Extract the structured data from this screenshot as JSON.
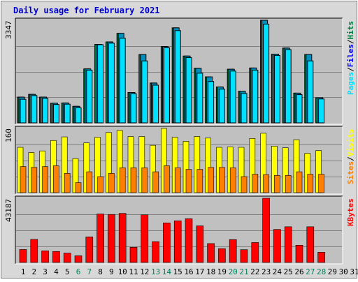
{
  "title": "Daily usage for February 2021",
  "colors": {
    "hits": "#008040",
    "files": "#00c0ff",
    "pages": "#00e0ff",
    "visits": "#ffff00",
    "sites": "#ff8000",
    "kbytes": "#ff0000",
    "weekend_label": "#00805c",
    "weekday_label": "#000000",
    "plot_bg": "#c0c0c0",
    "frame_bg": "#d8d8d8"
  },
  "chart_data": [
    {
      "type": "bar",
      "panel": "pages_files_hits",
      "ymax_label": "3347",
      "ylim": [
        0,
        3347
      ],
      "legend": [
        {
          "text": "Pages",
          "color": "#00e0ff"
        },
        {
          "text": "/",
          "color": "#000000"
        },
        {
          "text": "Files",
          "color": "#0000ff"
        },
        {
          "text": "/",
          "color": "#000000"
        },
        {
          "text": "Hits",
          "color": "#008040"
        }
      ],
      "categories": [
        "1",
        "2",
        "3",
        "4",
        "5",
        "6",
        "7",
        "8",
        "9",
        "10",
        "11",
        "12",
        "13",
        "14",
        "15",
        "16",
        "17",
        "18",
        "19",
        "20",
        "21",
        "22",
        "23",
        "24",
        "25",
        "26",
        "27",
        "28",
        "29",
        "30",
        "31"
      ],
      "series": [
        {
          "name": "Hits",
          "values": [
            840,
            930,
            840,
            640,
            650,
            540,
            1760,
            2560,
            2640,
            2920,
            990,
            2230,
            1300,
            2490,
            3100,
            2180,
            1780,
            1500,
            1170,
            1750,
            1030,
            1790,
            3347,
            2240,
            2440,
            970,
            2230,
            820,
            null,
            null,
            null
          ]
        },
        {
          "name": "Files",
          "values": [
            840,
            930,
            840,
            640,
            650,
            540,
            1760,
            2560,
            2640,
            2920,
            990,
            2230,
            1300,
            2490,
            3100,
            2180,
            1780,
            1500,
            1170,
            1750,
            1030,
            1790,
            3347,
            2240,
            2440,
            970,
            2230,
            820,
            null,
            null,
            null
          ]
        },
        {
          "name": "Pages",
          "values": [
            770,
            890,
            800,
            600,
            610,
            490,
            1720,
            2550,
            2600,
            2760,
            950,
            2020,
            1230,
            2450,
            3010,
            2130,
            1620,
            1350,
            1100,
            1690,
            960,
            1720,
            3220,
            2200,
            2390,
            920,
            2020,
            780,
            null,
            null,
            null
          ]
        }
      ]
    },
    {
      "type": "bar",
      "panel": "visits_sites",
      "ymax_label": "160",
      "ylim": [
        0,
        160
      ],
      "legend": [
        {
          "text": "Sites",
          "color": "#ff8000"
        },
        {
          "text": "/",
          "color": "#000000"
        },
        {
          "text": "Visits",
          "color": "#ffff00"
        }
      ],
      "categories": [
        "1",
        "2",
        "3",
        "4",
        "5",
        "6",
        "7",
        "8",
        "9",
        "10",
        "11",
        "12",
        "13",
        "14",
        "15",
        "16",
        "17",
        "18",
        "19",
        "20",
        "21",
        "22",
        "23",
        "24",
        "25",
        "26",
        "27",
        "28",
        "29",
        "30",
        "31"
      ],
      "series": [
        {
          "name": "Visits",
          "values": [
            113,
            100,
            104,
            130,
            139,
            85,
            124,
            138,
            150,
            155,
            140,
            140,
            118,
            160,
            138,
            128,
            140,
            136,
            113,
            114,
            113,
            135,
            148,
            116,
            112,
            132,
            98,
            105,
            null,
            null,
            null
          ]
        },
        {
          "name": "Sites",
          "values": [
            65,
            63,
            65,
            67,
            48,
            25,
            52,
            40,
            48,
            62,
            62,
            62,
            52,
            67,
            62,
            58,
            58,
            63,
            63,
            62,
            40,
            46,
            45,
            43,
            43,
            52,
            46,
            46,
            null,
            null,
            null
          ]
        }
      ]
    },
    {
      "type": "bar",
      "panel": "kbytes",
      "ymax_label": "43187",
      "ylim": [
        0,
        43187
      ],
      "legend": [
        {
          "text": "KBytes",
          "color": "#ff0000"
        }
      ],
      "categories": [
        "1",
        "2",
        "3",
        "4",
        "5",
        "6",
        "7",
        "8",
        "9",
        "10",
        "11",
        "12",
        "13",
        "14",
        "15",
        "16",
        "17",
        "18",
        "19",
        "20",
        "21",
        "22",
        "23",
        "24",
        "25",
        "26",
        "27",
        "28",
        "29",
        "30",
        "31"
      ],
      "series": [
        {
          "name": "KBytes",
          "values": [
            8700,
            15500,
            7800,
            7400,
            6300,
            4500,
            17200,
            32600,
            32300,
            33000,
            10200,
            32000,
            14000,
            26600,
            28000,
            29400,
            24600,
            12700,
            9300,
            15400,
            8600,
            13400,
            43187,
            22200,
            24000,
            11600,
            24000,
            6900,
            null,
            null,
            null
          ]
        }
      ]
    }
  ],
  "x_axis": {
    "labels": [
      "1",
      "2",
      "3",
      "4",
      "5",
      "6",
      "7",
      "8",
      "9",
      "10",
      "11",
      "12",
      "13",
      "14",
      "15",
      "16",
      "17",
      "18",
      "19",
      "20",
      "21",
      "22",
      "23",
      "24",
      "25",
      "26",
      "27",
      "28",
      "29",
      "30",
      "31"
    ],
    "weekend": [
      6,
      7,
      13,
      14,
      20,
      21,
      27,
      28
    ]
  }
}
